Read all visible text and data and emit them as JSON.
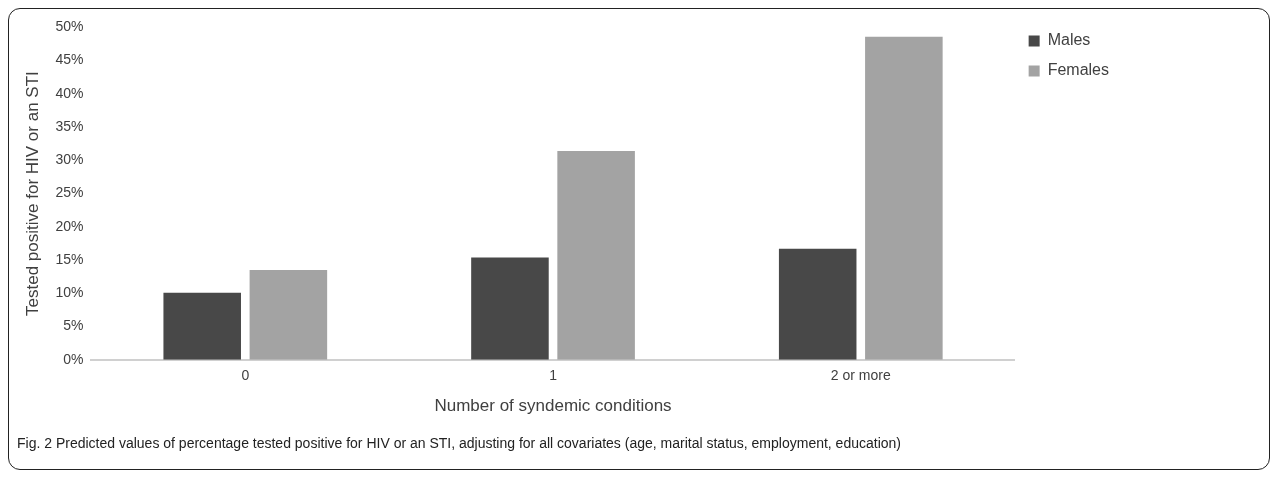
{
  "chart_data": {
    "type": "bar",
    "xlabel": "Number of syndemic conditions",
    "ylabel": "Tested positive for HIV or an STI",
    "categories": [
      "0",
      "1",
      "2 or more"
    ],
    "series": [
      {
        "name": "Males",
        "color": "#484848",
        "values": [
          10.1,
          15.4,
          16.7
        ]
      },
      {
        "name": "Females",
        "color": "#a3a3a3",
        "values": [
          13.5,
          31.4,
          48.6
        ]
      }
    ],
    "ylim": [
      0,
      50
    ],
    "yticks": [
      {
        "value": 0,
        "label": "0%"
      },
      {
        "value": 5,
        "label": "5%"
      },
      {
        "value": 10,
        "label": "10%"
      },
      {
        "value": 15,
        "label": "15%"
      },
      {
        "value": 20,
        "label": "20%"
      },
      {
        "value": 25,
        "label": "25%"
      },
      {
        "value": 30,
        "label": "30%"
      },
      {
        "value": 35,
        "label": "35%"
      },
      {
        "value": 40,
        "label": "40%"
      },
      {
        "value": 45,
        "label": "45%"
      },
      {
        "value": 50,
        "label": "50%"
      }
    ],
    "grid": false,
    "legend": "top right",
    "annotations": [
      "Fig. 2 Predicted values of percentage tested positive for HIV or an STI, adjusting for all covariates (age, marital status, employment, education)"
    ]
  }
}
